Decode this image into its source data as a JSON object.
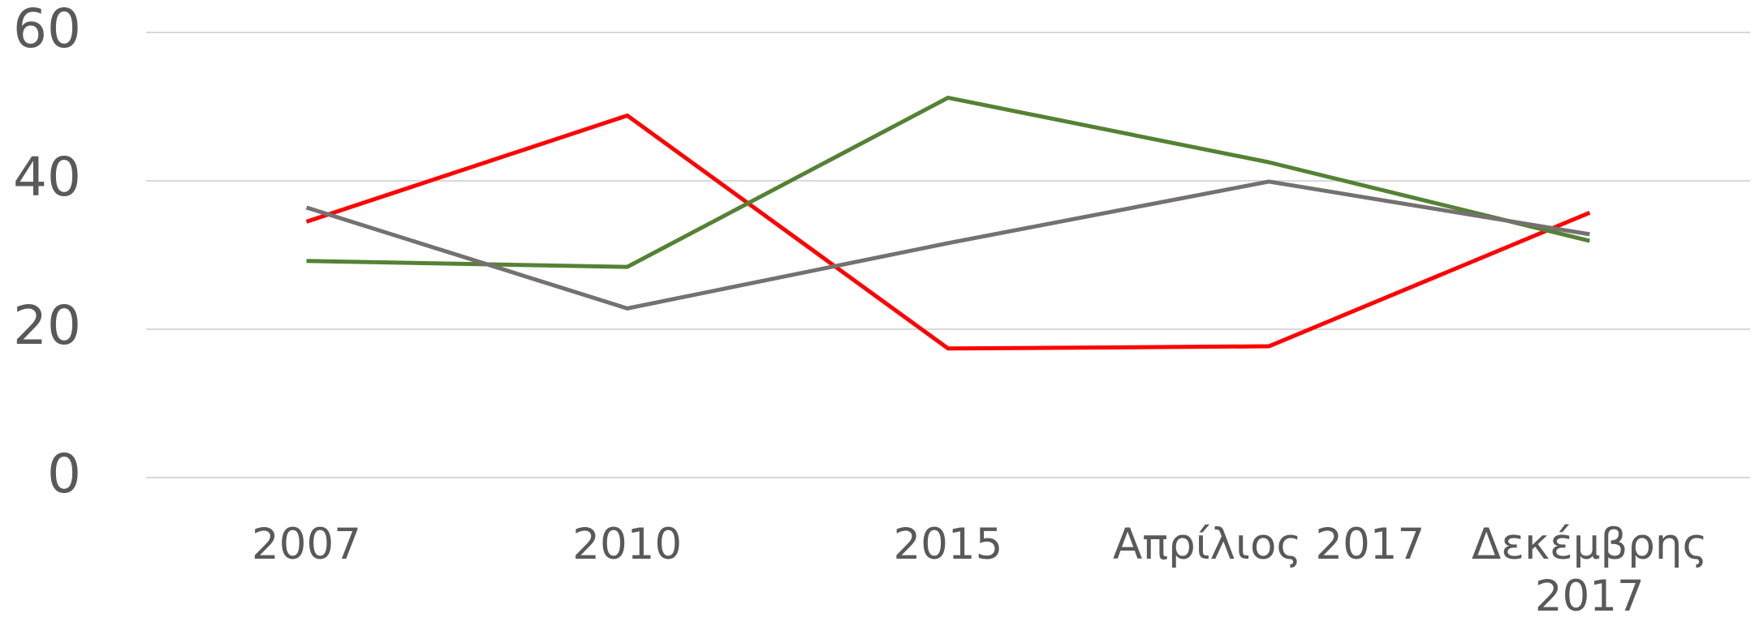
{
  "chart_data": {
    "type": "line",
    "categories": [
      "2007",
      "2010",
      "2015",
      "Απρίλιος 2017",
      "Δεκέμβρης 2017"
    ],
    "series": [
      {
        "color": "#ff0000",
        "values": [
          34.5,
          48.8,
          17.4,
          17.7,
          35.7
        ]
      },
      {
        "color": "#548235",
        "values": [
          29.2,
          28.4,
          51.2,
          42.5,
          31.9
        ]
      },
      {
        "color": "#767171",
        "values": [
          36.4,
          22.8,
          31.6,
          39.9,
          32.8
        ]
      }
    ],
    "ylim": [
      0,
      60
    ],
    "yticks": [
      0,
      20,
      40,
      60
    ],
    "grid": true
  }
}
